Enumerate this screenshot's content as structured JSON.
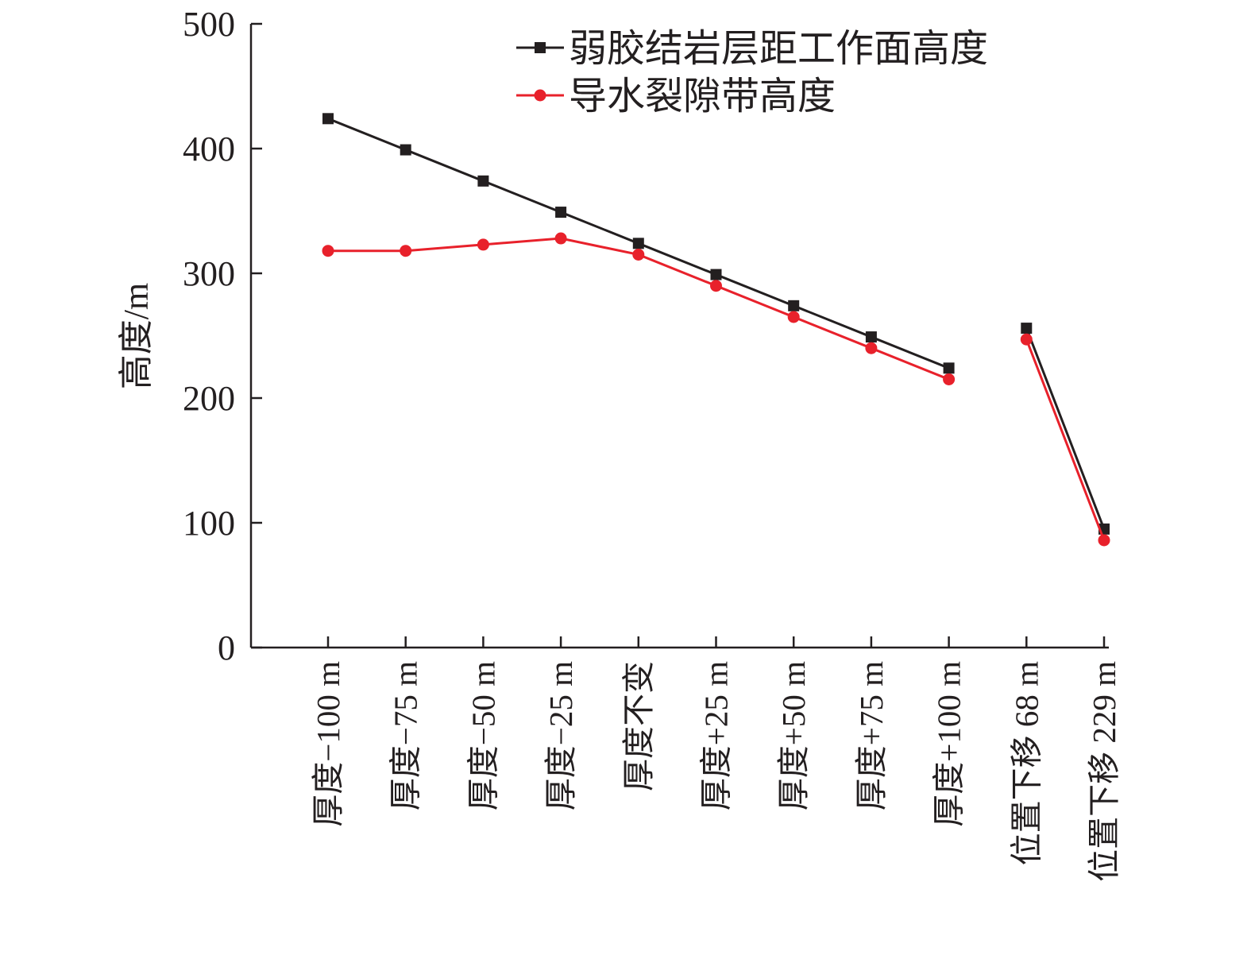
{
  "chart_data": {
    "type": "line",
    "title": "",
    "ylabel": "高度/m",
    "xlabel": "",
    "ylim": [
      0,
      500
    ],
    "yticks": [
      0,
      100,
      200,
      300,
      400,
      500
    ],
    "yticklabels": [
      "0",
      "100",
      "200",
      "300",
      "400",
      "500"
    ],
    "categories": [
      "厚度−100 m",
      "厚度−75 m",
      "厚度−50 m",
      "厚度−25 m",
      "厚度不变",
      "厚度+25 m",
      "厚度+50 m",
      "厚度+75 m",
      "厚度+100 m",
      "位置下移 68 m",
      "位置下移 229 m"
    ],
    "segment_breaks_after": [
      8
    ],
    "legend_position": "top-right",
    "grid": false,
    "series": [
      {
        "name": "弱胶结岩层距工作面高度",
        "color": "#231f20",
        "marker": "square",
        "values": [
          424,
          399,
          374,
          349,
          324,
          299,
          274,
          249,
          224,
          256,
          95
        ]
      },
      {
        "name": "导水裂隙带高度",
        "color": "#e8212b",
        "marker": "circle",
        "values": [
          318,
          318,
          323,
          328,
          315,
          290,
          265,
          240,
          215,
          247,
          86
        ]
      }
    ]
  }
}
